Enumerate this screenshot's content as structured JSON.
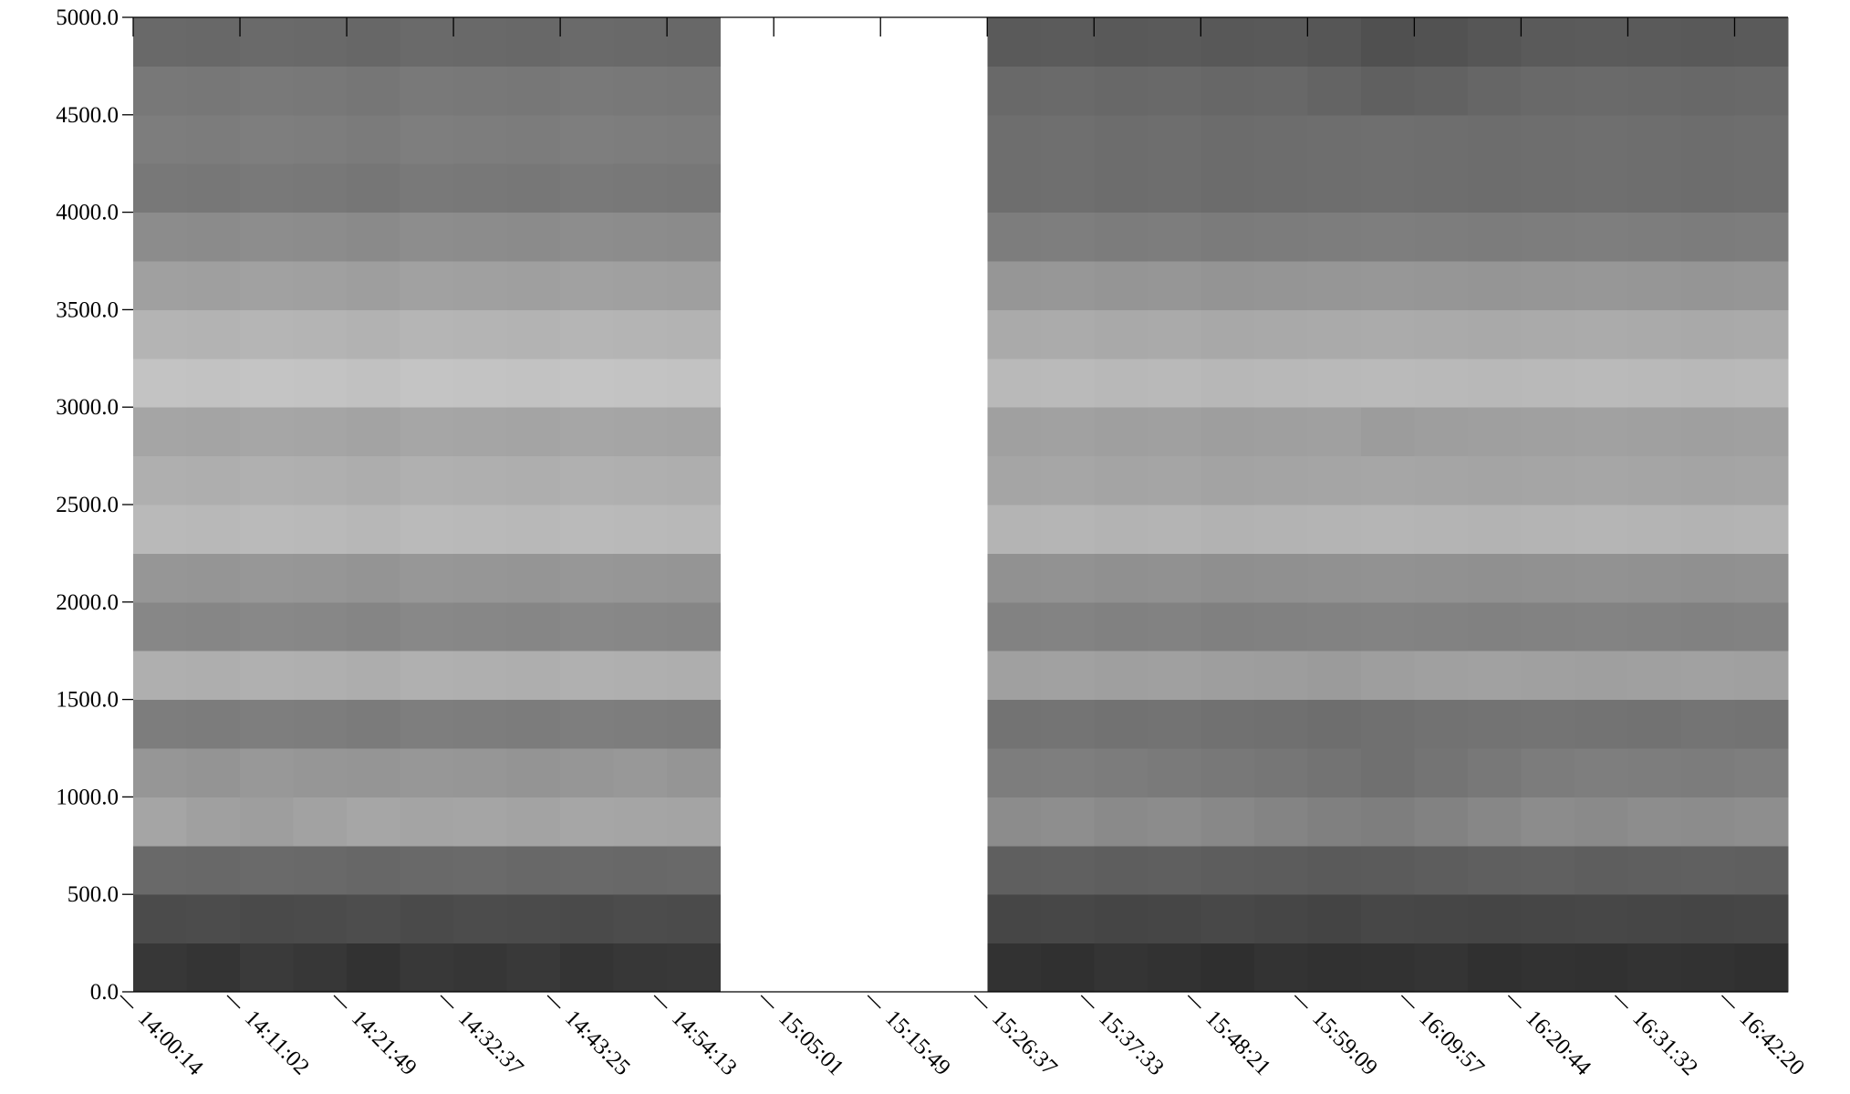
{
  "chart_data": {
    "type": "heatmap",
    "colormap": "gray",
    "ylim": [
      0,
      5000
    ],
    "yticks": [
      {
        "value": 0,
        "label": "0.0"
      },
      {
        "value": 500,
        "label": "500.0"
      },
      {
        "value": 1000,
        "label": "1000.0"
      },
      {
        "value": 1500,
        "label": "1500.0"
      },
      {
        "value": 2000,
        "label": "2000.0"
      },
      {
        "value": 2500,
        "label": "2500.0"
      },
      {
        "value": 3000,
        "label": "3000.0"
      },
      {
        "value": 3500,
        "label": "3500.0"
      },
      {
        "value": 4000,
        "label": "4000.0"
      },
      {
        "value": 4500,
        "label": "4500.0"
      },
      {
        "value": 5000,
        "label": "5000.0"
      }
    ],
    "xticks": [
      "14:00:14",
      "14:11:02",
      "14:21:49",
      "14:32:37",
      "14:43:25",
      "14:54:13",
      "15:05:01",
      "15:15:49",
      "15:26:37",
      "15:37:33",
      "15:48:21",
      "15:59:09",
      "16:09:57",
      "16:20:44",
      "16:31:32",
      "16:42:20"
    ],
    "values": [
      [
        55,
        52,
        58,
        55,
        50,
        56,
        54,
        57,
        52,
        55,
        56,
        null,
        null,
        null,
        null,
        null,
        50,
        48,
        52,
        50,
        47,
        51,
        49,
        50,
        52,
        48,
        50,
        49,
        51,
        50,
        48
      ],
      [
        75,
        76,
        74,
        75,
        77,
        74,
        76,
        75,
        74,
        76,
        75,
        null,
        null,
        null,
        null,
        null,
        70,
        71,
        69,
        70,
        72,
        70,
        68,
        71,
        70,
        69,
        70,
        71,
        70,
        69,
        70
      ],
      [
        105,
        104,
        106,
        105,
        103,
        105,
        106,
        104,
        105,
        104,
        105,
        null,
        null,
        null,
        null,
        null,
        95,
        96,
        94,
        95,
        93,
        92,
        90,
        91,
        93,
        95,
        96,
        94,
        95,
        96,
        95
      ],
      [
        165,
        160,
        158,
        162,
        166,
        164,
        165,
        163,
        166,
        165,
        164,
        null,
        null,
        null,
        null,
        null,
        140,
        142,
        138,
        140,
        136,
        132,
        128,
        126,
        130,
        135,
        140,
        138,
        141,
        140,
        142
      ],
      [
        150,
        148,
        152,
        150,
        149,
        151,
        150,
        148,
        150,
        152,
        149,
        null,
        null,
        null,
        null,
        null,
        125,
        126,
        124,
        122,
        120,
        118,
        115,
        112,
        116,
        120,
        124,
        126,
        125,
        124,
        126
      ],
      [
        125,
        124,
        126,
        125,
        123,
        126,
        125,
        124,
        126,
        125,
        124,
        null,
        null,
        null,
        null,
        null,
        115,
        116,
        114,
        115,
        113,
        112,
        110,
        112,
        114,
        115,
        116,
        115,
        114,
        116,
        115
      ],
      [
        175,
        174,
        176,
        175,
        173,
        176,
        175,
        174,
        176,
        175,
        174,
        null,
        null,
        null,
        null,
        null,
        160,
        161,
        159,
        160,
        158,
        157,
        155,
        158,
        160,
        161,
        160,
        159,
        160,
        161,
        160
      ],
      [
        135,
        134,
        136,
        135,
        133,
        136,
        135,
        134,
        136,
        135,
        134,
        null,
        null,
        null,
        null,
        null,
        130,
        131,
        129,
        130,
        128,
        129,
        130,
        131,
        130,
        129,
        130,
        131,
        130,
        129,
        130
      ],
      [
        150,
        149,
        151,
        150,
        148,
        151,
        150,
        149,
        151,
        150,
        149,
        null,
        null,
        null,
        null,
        null,
        145,
        146,
        144,
        145,
        143,
        144,
        145,
        146,
        145,
        144,
        145,
        146,
        145,
        144,
        145
      ],
      [
        185,
        184,
        186,
        185,
        183,
        186,
        185,
        184,
        186,
        185,
        184,
        null,
        null,
        null,
        null,
        null,
        180,
        181,
        179,
        180,
        178,
        179,
        180,
        181,
        180,
        179,
        180,
        181,
        180,
        179,
        180
      ],
      [
        175,
        174,
        176,
        175,
        173,
        176,
        175,
        174,
        176,
        175,
        174,
        null,
        null,
        null,
        null,
        null,
        165,
        166,
        164,
        165,
        163,
        164,
        165,
        166,
        165,
        164,
        165,
        166,
        165,
        164,
        165
      ],
      [
        165,
        164,
        166,
        165,
        163,
        166,
        165,
        164,
        166,
        165,
        164,
        null,
        null,
        null,
        null,
        null,
        160,
        161,
        159,
        160,
        158,
        159,
        160,
        156,
        158,
        159,
        160,
        161,
        160,
        159,
        160
      ],
      [
        195,
        194,
        196,
        195,
        193,
        196,
        195,
        194,
        196,
        195,
        194,
        null,
        null,
        null,
        null,
        null,
        185,
        186,
        184,
        185,
        183,
        184,
        185,
        186,
        185,
        184,
        185,
        186,
        185,
        184,
        185
      ],
      [
        180,
        179,
        181,
        180,
        178,
        181,
        180,
        179,
        181,
        180,
        179,
        null,
        null,
        null,
        null,
        null,
        170,
        171,
        169,
        170,
        168,
        169,
        170,
        171,
        170,
        169,
        170,
        171,
        170,
        169,
        170
      ],
      [
        160,
        159,
        161,
        160,
        158,
        161,
        160,
        159,
        161,
        160,
        159,
        null,
        null,
        null,
        null,
        null,
        150,
        151,
        149,
        150,
        148,
        149,
        150,
        151,
        150,
        149,
        150,
        151,
        150,
        149,
        150
      ],
      [
        140,
        139,
        141,
        140,
        138,
        141,
        140,
        139,
        141,
        140,
        139,
        null,
        null,
        null,
        null,
        null,
        125,
        126,
        124,
        125,
        123,
        124,
        125,
        126,
        125,
        124,
        125,
        126,
        125,
        124,
        125
      ],
      [
        120,
        119,
        121,
        120,
        118,
        121,
        120,
        119,
        121,
        120,
        119,
        null,
        null,
        null,
        null,
        null,
        110,
        111,
        109,
        110,
        108,
        109,
        110,
        111,
        110,
        109,
        110,
        111,
        110,
        109,
        110
      ],
      [
        125,
        124,
        126,
        125,
        123,
        126,
        125,
        124,
        126,
        125,
        124,
        null,
        null,
        null,
        null,
        null,
        110,
        111,
        109,
        110,
        108,
        109,
        110,
        111,
        110,
        109,
        110,
        111,
        110,
        109,
        110
      ],
      [
        120,
        119,
        121,
        120,
        118,
        121,
        120,
        119,
        121,
        120,
        119,
        null,
        null,
        null,
        null,
        null,
        105,
        106,
        104,
        105,
        103,
        104,
        100,
        96,
        98,
        102,
        105,
        106,
        105,
        104,
        105
      ],
      [
        105,
        104,
        106,
        105,
        103,
        106,
        105,
        104,
        106,
        105,
        104,
        null,
        null,
        null,
        null,
        null,
        90,
        91,
        89,
        90,
        88,
        89,
        86,
        80,
        82,
        86,
        90,
        91,
        90,
        89,
        90
      ]
    ]
  }
}
